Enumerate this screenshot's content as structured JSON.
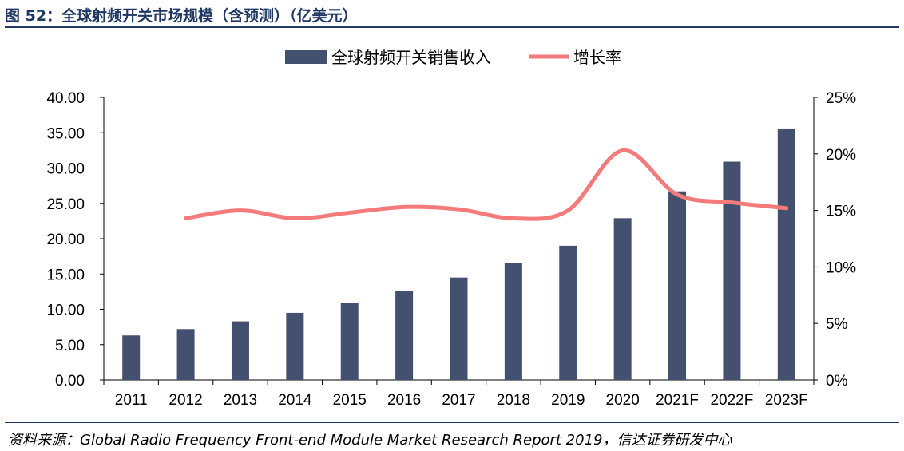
{
  "figure": {
    "title": "图 52：全球射频开关市场规模（含预测）（亿美元）",
    "source": "资料来源：Global Radio Frequency Front-end Module Market Research Report 2019，信达证券研发中心"
  },
  "colors": {
    "bar": "#44506f",
    "line": "#f47b7b",
    "axis": "#000000"
  },
  "chart_data": {
    "type": "bar",
    "categories": [
      "2011",
      "2012",
      "2013",
      "2014",
      "2015",
      "2016",
      "2017",
      "2018",
      "2019",
      "2020",
      "2021F",
      "2022F",
      "2023F"
    ],
    "series": [
      {
        "name": "全球射频开关销售收入",
        "type": "bar",
        "axis": "left",
        "values": [
          6.3,
          7.2,
          8.3,
          9.5,
          10.9,
          12.6,
          14.5,
          16.6,
          19.0,
          22.9,
          26.7,
          30.9,
          35.6
        ]
      },
      {
        "name": "增长率",
        "type": "line",
        "axis": "right",
        "values": [
          null,
          14.3,
          15.0,
          14.3,
          14.8,
          15.3,
          15.1,
          14.3,
          15.0,
          20.3,
          16.4,
          15.7,
          15.2
        ]
      }
    ],
    "y_left": {
      "ylim": [
        0,
        40
      ],
      "ticks": [
        "0.00",
        "5.00",
        "10.00",
        "15.00",
        "20.00",
        "25.00",
        "30.00",
        "35.00",
        "40.00"
      ]
    },
    "y_right": {
      "ylim": [
        0,
        25
      ],
      "ticks": [
        "0%",
        "5%",
        "10%",
        "15%",
        "20%",
        "25%"
      ]
    },
    "legend": {
      "placement": "top-center"
    },
    "grid": false
  }
}
